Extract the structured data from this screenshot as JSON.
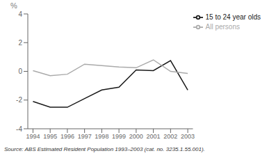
{
  "chart_data": {
    "type": "line",
    "ylabel": "%",
    "annotations": [
      "Source: ABS Estimated Resident Population 1993–2003 (cat. no. 3235.1.55.001)."
    ],
    "x": [
      1994,
      1995,
      1996,
      1997,
      1998,
      1999,
      2000,
      2001,
      2002,
      2003
    ],
    "series": [
      {
        "name": "15 to 24 year olds",
        "color": "#1a1a1a",
        "values": [
          -2.1,
          -2.5,
          -2.5,
          -1.9,
          -1.3,
          -1.1,
          0.1,
          0.05,
          0.75,
          -1.3
        ]
      },
      {
        "name": "All persons",
        "color": "#aaaaaa",
        "values": [
          0.05,
          -0.3,
          -0.2,
          0.5,
          0.4,
          0.3,
          0.25,
          0.8,
          0.0,
          -0.15
        ]
      }
    ],
    "xlim": [
      1993.7,
      2003.3
    ],
    "xticks": [
      1994,
      1995,
      1996,
      1997,
      1998,
      1999,
      2000,
      2001,
      2002,
      2003
    ],
    "ylim": [
      -4,
      4
    ],
    "yticks": [
      -4,
      -2,
      0,
      2,
      4
    ],
    "grid": false,
    "legend": "upper right"
  }
}
